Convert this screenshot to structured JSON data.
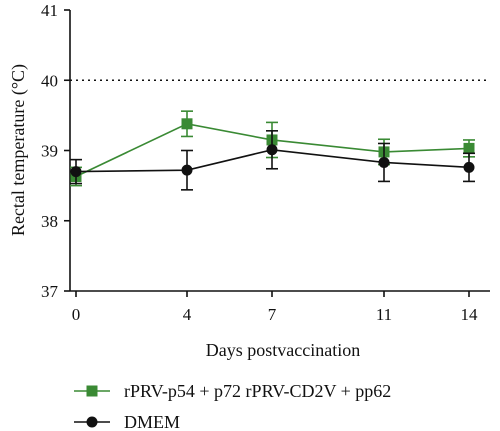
{
  "chart_data": {
    "type": "line",
    "xlabel": "Days postvaccination",
    "ylabel": "Rectal temperature (°C)",
    "x": [
      0,
      4,
      7,
      11,
      14
    ],
    "x_tick_labels": [
      "0",
      "4",
      "7",
      "11",
      "14"
    ],
    "y_ticks": [
      37,
      38,
      39,
      40,
      41
    ],
    "y_tick_labels": [
      "37",
      "38",
      "39",
      "40",
      "41"
    ],
    "ylim": [
      37,
      41
    ],
    "xlim": [
      0,
      14
    ],
    "reference_line": {
      "y": 40,
      "style": "dotted"
    },
    "grid": false,
    "legend_position": "bottom",
    "series": [
      {
        "name": "rPRV-p54 + p72 rPRV-CD2V + pp62",
        "color": "#3a8a34",
        "marker": "square",
        "values": [
          38.63,
          39.38,
          39.15,
          38.98,
          39.03
        ],
        "errors": [
          0.13,
          0.18,
          0.25,
          0.18,
          0.12
        ]
      },
      {
        "name": "DMEM",
        "color": "#111111",
        "marker": "circle",
        "values": [
          38.7,
          38.72,
          39.01,
          38.83,
          38.76
        ],
        "errors": [
          0.17,
          0.28,
          0.27,
          0.27,
          0.2
        ]
      }
    ]
  }
}
